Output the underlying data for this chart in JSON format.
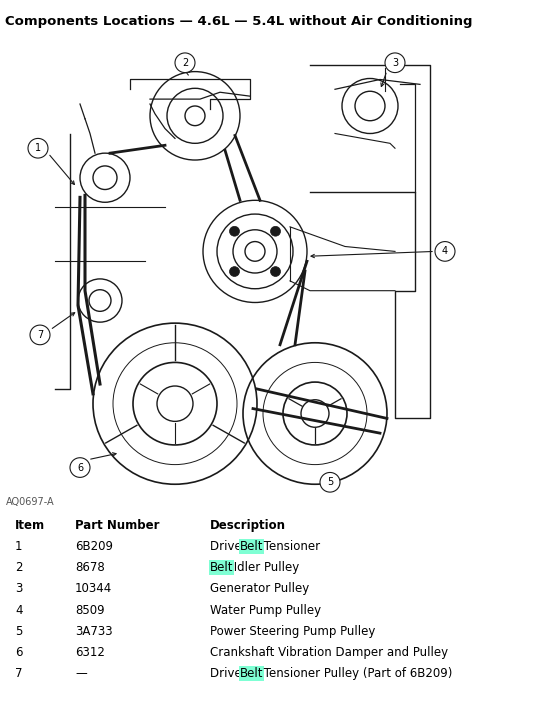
{
  "title": "Components Locations — 4.6L — 5.4L without Air Conditioning",
  "title_fontsize": 9.5,
  "bg_color": "#ffffff",
  "diagram_code": "AQ0697-A",
  "table_rows": [
    {
      "item": "1",
      "part": "6B209",
      "desc": "Drive Belt Tensioner",
      "hl_before": "Drive ",
      "hl_word": "Belt",
      "hl_after": " Tensioner"
    },
    {
      "item": "2",
      "part": "8678",
      "desc": "Belt Idler Pulley",
      "hl_before": "",
      "hl_word": "Belt",
      "hl_after": " Idler Pulley"
    },
    {
      "item": "3",
      "part": "10344",
      "desc": "Generator Pulley",
      "hl_before": null,
      "hl_word": null,
      "hl_after": null
    },
    {
      "item": "4",
      "part": "8509",
      "desc": "Water Pump Pulley",
      "hl_before": null,
      "hl_word": null,
      "hl_after": null
    },
    {
      "item": "5",
      "part": "3A733",
      "desc": "Power Steering Pump Pulley",
      "hl_before": null,
      "hl_word": null,
      "hl_after": null
    },
    {
      "item": "6",
      "part": "6312",
      "desc": "Crankshaft Vibration Damper and Pulley",
      "hl_before": null,
      "hl_word": null,
      "hl_after": null
    },
    {
      "item": "7",
      "part": "—",
      "desc": "Drive Belt Tensioner Pulley (Part of 6B209)",
      "hl_before": "Drive ",
      "hl_word": "Belt",
      "hl_after": " Tensioner Pulley (Part of 6B209)"
    }
  ],
  "highlight_color": "#7fffd4",
  "line_color": "#1a1a1a",
  "font_family": "DejaVu Sans",
  "table_fontsize": 8.5,
  "header_fontsize": 8.5
}
